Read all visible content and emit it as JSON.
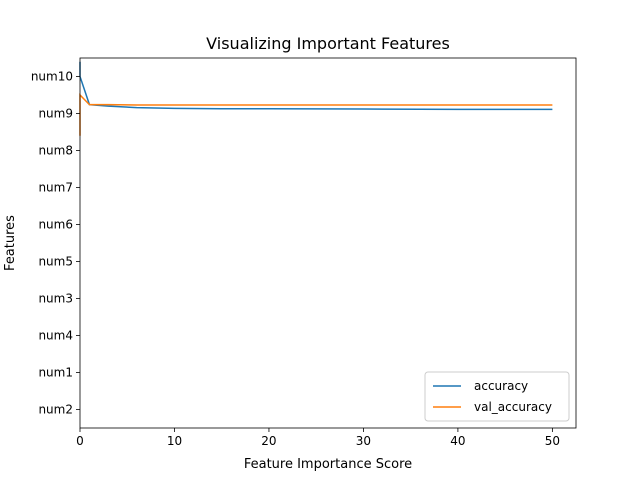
{
  "chart_data": {
    "type": "line",
    "title": "Visualizing Important Features",
    "xlabel": "Feature Importance Score",
    "ylabel": "Features",
    "xlim": [
      0,
      52.5
    ],
    "ylim": [
      -0.5,
      9.5
    ],
    "x_ticks": [
      0,
      10,
      20,
      30,
      40,
      50
    ],
    "y_categories": [
      "num2",
      "num1",
      "num4",
      "num3",
      "num5",
      "num6",
      "num7",
      "num8",
      "num9",
      "num10"
    ],
    "grid": false,
    "legend_position": "lower-right",
    "series": [
      {
        "name": "accuracy",
        "color": "#1f77b4",
        "x": [
          0,
          0,
          1,
          3,
          6,
          10,
          15,
          20,
          30,
          40,
          50
        ],
        "y": [
          9.4,
          9.0,
          8.24,
          8.2,
          8.16,
          8.14,
          8.13,
          8.13,
          8.12,
          8.11,
          8.11
        ]
      },
      {
        "name": "val_accuracy",
        "color": "#ff7f0e",
        "x": [
          0,
          0,
          1,
          3,
          6,
          10,
          15,
          20,
          30,
          40,
          50
        ],
        "y": [
          7.4,
          8.5,
          8.24,
          8.24,
          8.23,
          8.23,
          8.23,
          8.23,
          8.23,
          8.23,
          8.23
        ]
      }
    ]
  }
}
